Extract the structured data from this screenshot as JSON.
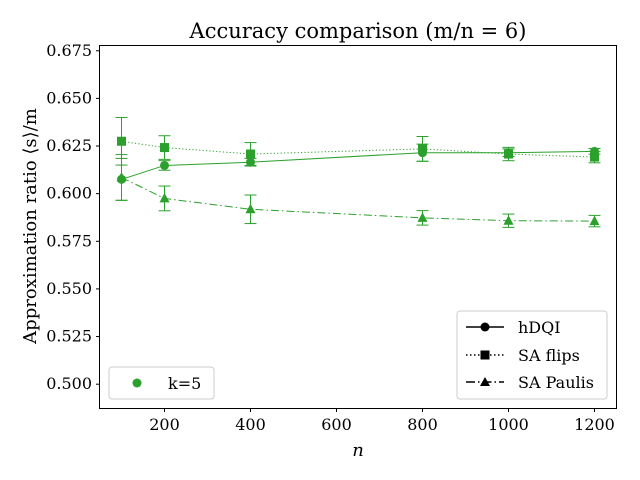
{
  "chart_data": {
    "type": "line",
    "title": "Accuracy comparison (m/n = 6)",
    "xlabel": "n",
    "ylabel": "Approximation ratio ⟨s⟩/m",
    "xlim": [
      50,
      1250
    ],
    "ylim": [
      0.4875,
      0.6775
    ],
    "xticks": [
      200,
      400,
      600,
      800,
      1000,
      1200
    ],
    "yticks": [
      0.5,
      0.525,
      0.55,
      0.575,
      0.6,
      0.625,
      0.65,
      0.675
    ],
    "ytick_labels": [
      "0.500",
      "0.525",
      "0.550",
      "0.575",
      "0.600",
      "0.625",
      "0.650",
      "0.675"
    ],
    "color": "#2ca02c",
    "grid": false,
    "series": [
      {
        "name": "hDQI",
        "linestyle": "solid",
        "marker": "circle",
        "x": [
          100,
          200,
          400,
          800,
          1000,
          1200
        ],
        "y": [
          0.6075,
          0.6148,
          0.6165,
          0.6215,
          0.6215,
          0.6222
        ],
        "err": [
          0.011,
          0.0025,
          0.002,
          0.0045,
          0.002,
          0.0015
        ]
      },
      {
        "name": "SA flips",
        "linestyle": "dotted",
        "marker": "square",
        "x": [
          100,
          200,
          400,
          800,
          1000,
          1200
        ],
        "y": [
          0.6275,
          0.6242,
          0.6208,
          0.6235,
          0.6208,
          0.6192
        ],
        "err": [
          0.0125,
          0.0062,
          0.006,
          0.0065,
          0.0035,
          0.003
        ]
      },
      {
        "name": "SA Paulis",
        "linestyle": "dashdot",
        "marker": "triangle",
        "x": [
          100,
          200,
          400,
          800,
          1000,
          1200
        ],
        "y": [
          0.6085,
          0.5975,
          0.5918,
          0.5873,
          0.5858,
          0.5856
        ],
        "err": [
          0.012,
          0.0065,
          0.0075,
          0.0038,
          0.0035,
          0.003
        ]
      }
    ],
    "legend_style": {
      "position": "lower-right",
      "entries": [
        "hDQI",
        "SA flips",
        "SA Paulis"
      ]
    },
    "legend_k": {
      "position": "lower-left",
      "label": "k=5"
    }
  }
}
